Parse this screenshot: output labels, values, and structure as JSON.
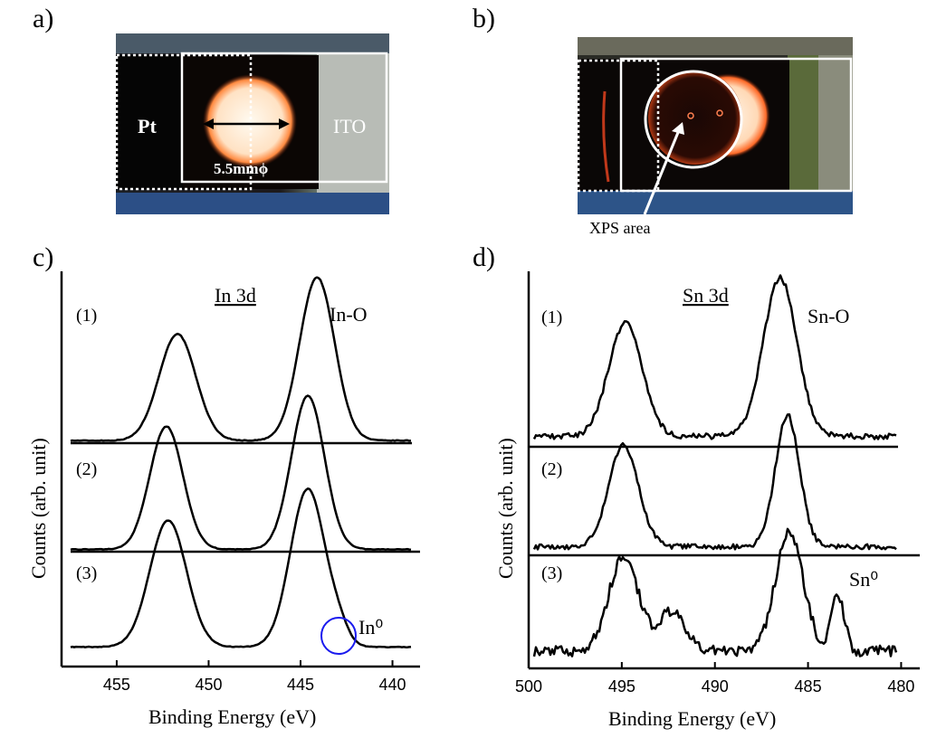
{
  "panels": {
    "a": {
      "label": "a)",
      "left_text": "Pt",
      "right_text": "ITO",
      "diameter_text": "5.5mmϕ"
    },
    "b": {
      "label": "b)",
      "annotation": "XPS area"
    },
    "c": {
      "label": "c)",
      "ylabel": "Counts (arb. unit)",
      "xlabel": "Binding Energy (eV)",
      "title": "In 3d",
      "peak_label_top": "In-O",
      "peak_label_metal": "In⁰",
      "trace_labels": [
        "(1)",
        "(2)",
        "(3)"
      ],
      "xticks": [
        "455",
        "450",
        "445",
        "440"
      ]
    },
    "d": {
      "label": "d)",
      "ylabel": "Counts (arb. unit)",
      "xlabel": "Binding Energy (eV)",
      "title": "Sn 3d",
      "peak_label_top": "Sn-O",
      "peak_label_metal": "Sn⁰",
      "trace_labels": [
        "(1)",
        "(2)",
        "(3)"
      ],
      "xticks": [
        "500",
        "495",
        "490",
        "485",
        "480"
      ]
    }
  },
  "colors": {
    "highlight_circle": "#1a1aee",
    "glow": "#ffe9cf",
    "photo_bg": "#0b0706"
  },
  "chart_data": [
    {
      "id": "in3d",
      "type": "line",
      "title": "In 3d",
      "xlabel": "Binding Energy (eV)",
      "ylabel": "Counts (arb. unit)",
      "xlim": [
        458,
        438.5
      ],
      "xticks": [
        455,
        450,
        445,
        440
      ],
      "series": [
        {
          "name": "(1)",
          "peaks": [
            {
              "x": 451.7,
              "height": 0.62,
              "width": 1.0
            },
            {
              "x": 444.1,
              "height": 0.95,
              "width": 0.95
            }
          ]
        },
        {
          "name": "(2)",
          "peaks": [
            {
              "x": 452.3,
              "height": 0.8,
              "width": 0.9
            },
            {
              "x": 444.6,
              "height": 1.0,
              "width": 0.9
            }
          ]
        },
        {
          "name": "(3)",
          "peaks": [
            {
              "x": 452.2,
              "height": 0.8,
              "width": 1.0
            },
            {
              "x": 444.6,
              "height": 1.0,
              "width": 0.95
            },
            {
              "x": 442.9,
              "height": 0.08,
              "width": 0.5
            }
          ]
        }
      ]
    },
    {
      "id": "sn3d",
      "type": "line",
      "title": "Sn 3d",
      "xlabel": "Binding Energy (eV)",
      "ylabel": "Counts (arb. unit)",
      "xlim": [
        500,
        479
      ],
      "xticks": [
        500,
        495,
        490,
        485,
        480
      ],
      "series": [
        {
          "name": "(1)",
          "peaks": [
            {
              "x": 494.8,
              "height": 0.72,
              "width": 0.9
            },
            {
              "x": 486.5,
              "height": 1.0,
              "width": 0.9
            }
          ]
        },
        {
          "name": "(2)",
          "peaks": [
            {
              "x": 494.9,
              "height": 0.68,
              "width": 0.8
            },
            {
              "x": 486.1,
              "height": 0.88,
              "width": 0.65
            }
          ]
        },
        {
          "name": "(3)",
          "peaks": [
            {
              "x": 494.9,
              "height": 0.72,
              "width": 0.8
            },
            {
              "x": 492.3,
              "height": 0.3,
              "width": 0.7
            },
            {
              "x": 486.0,
              "height": 0.9,
              "width": 0.75
            },
            {
              "x": 483.4,
              "height": 0.43,
              "width": 0.35
            }
          ]
        }
      ]
    }
  ]
}
